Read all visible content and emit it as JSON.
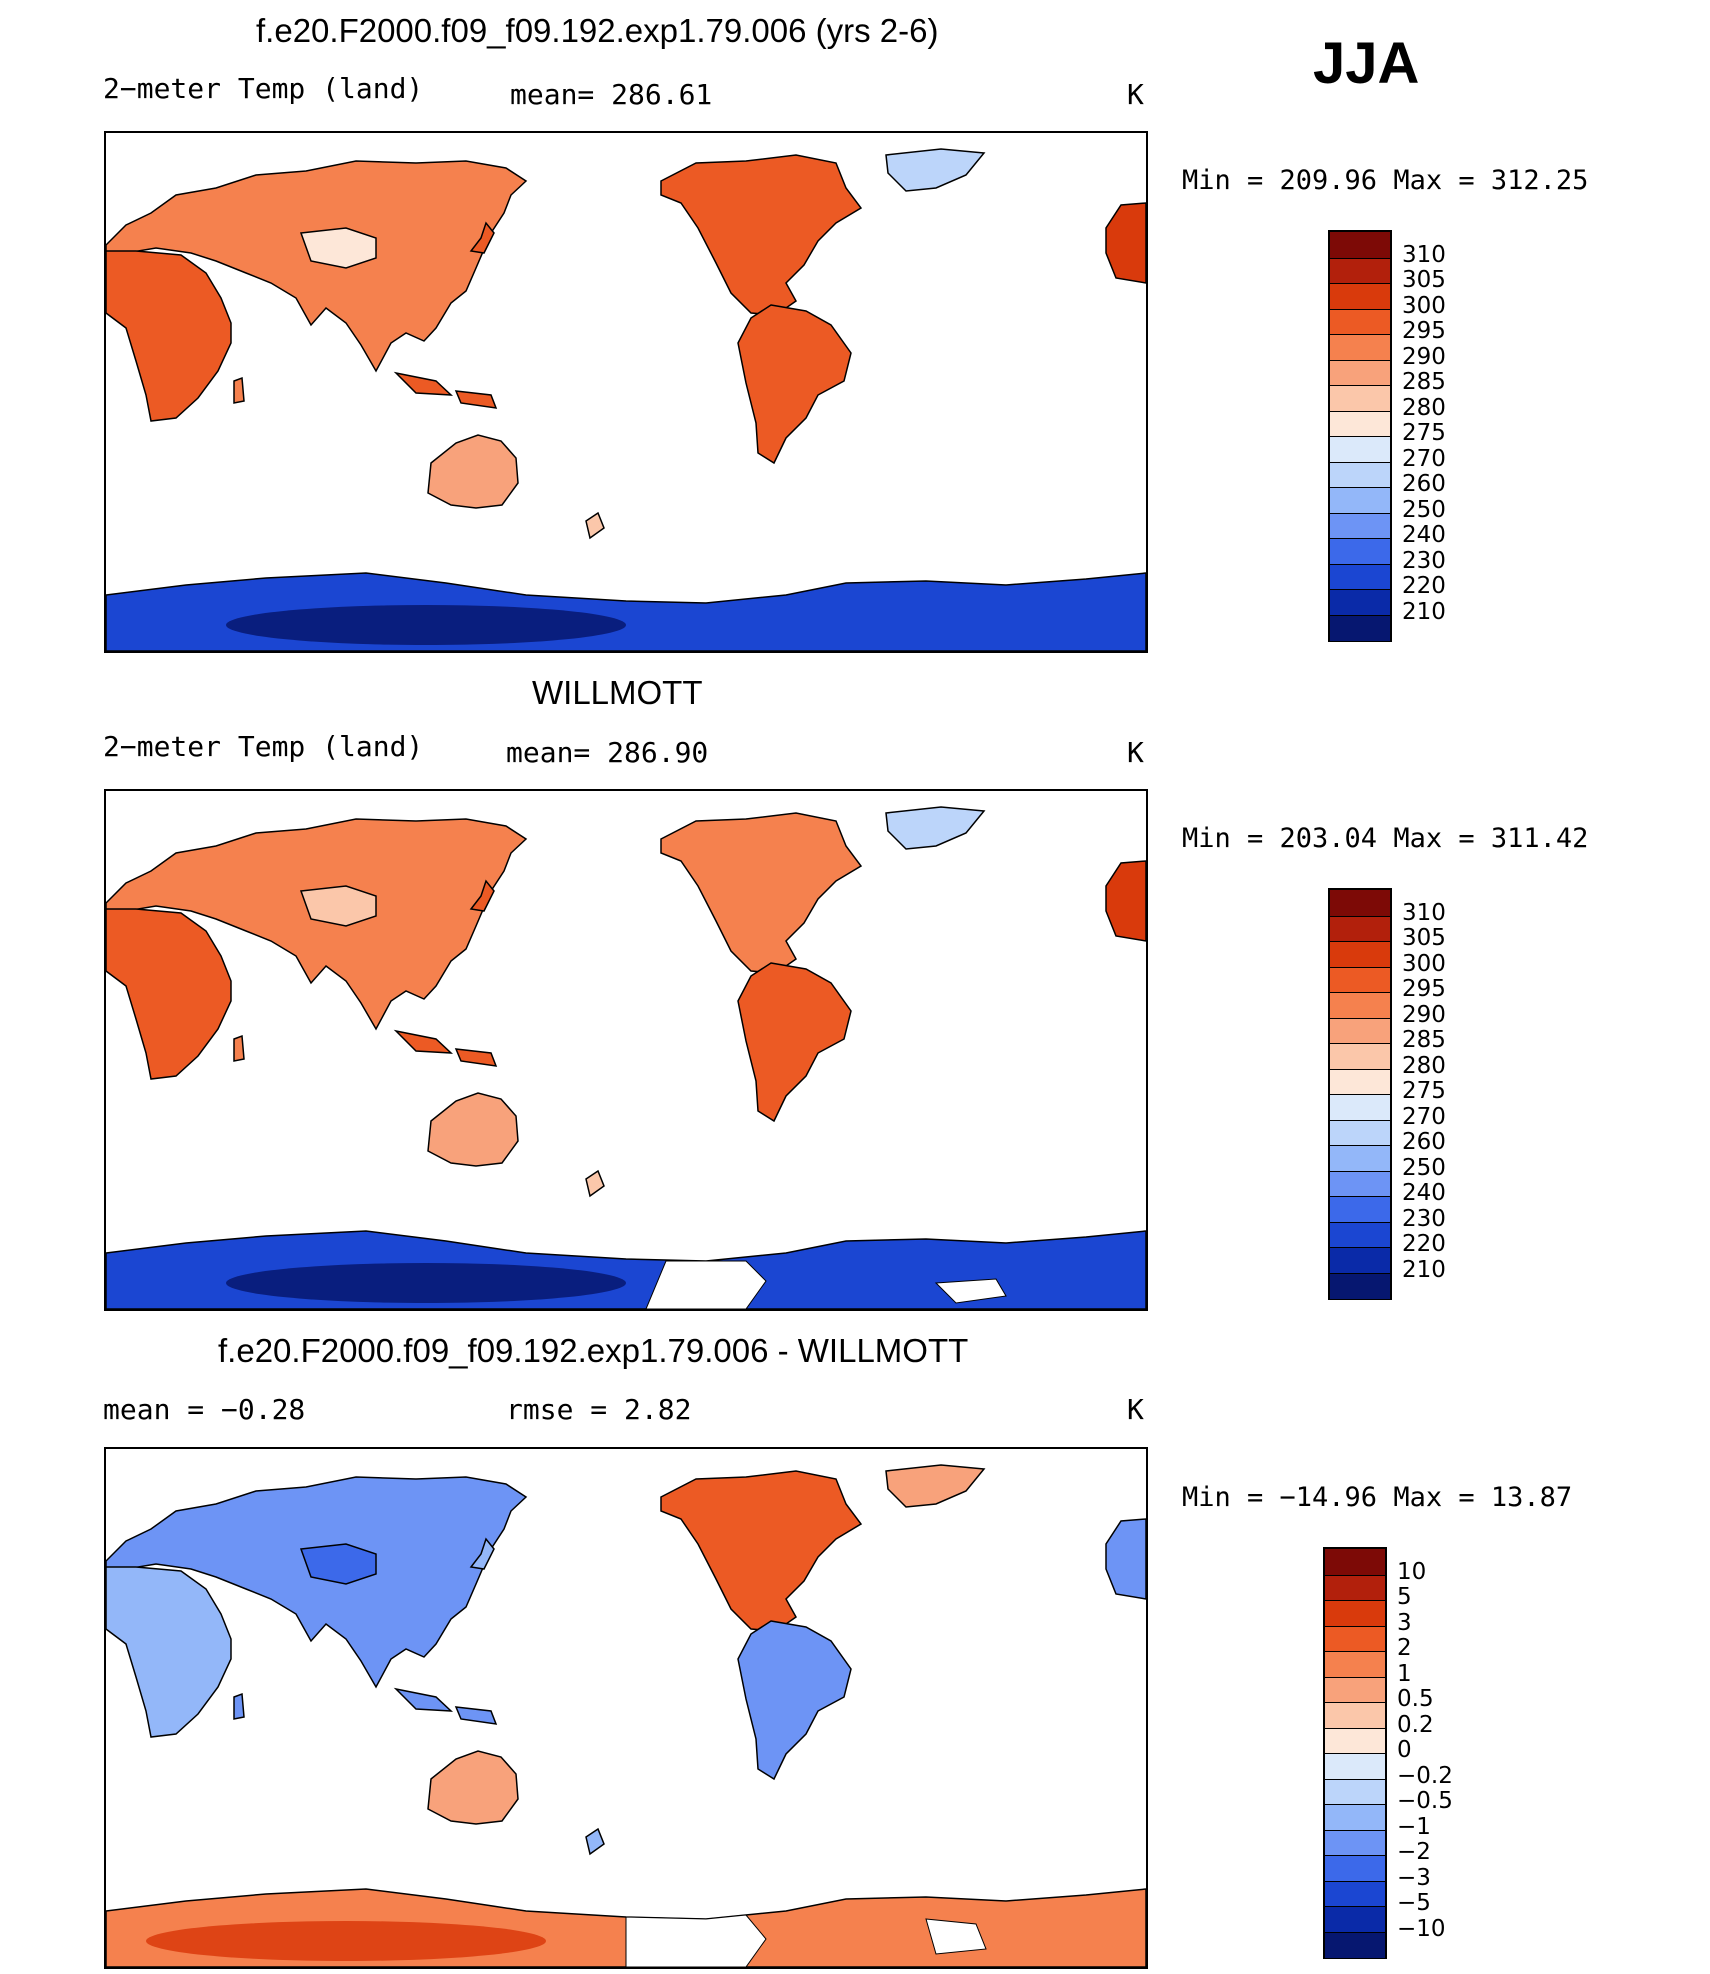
{
  "season": "JJA",
  "panels": [
    {
      "title": "f.e20.F2000.f09_f09.192.exp1.79.006 (yrs 2-6)",
      "left_label": "2−meter Temp (land)",
      "center_label": "mean= 286.61",
      "units": "K",
      "minmax": "Min = 209.96 Max = 312.25",
      "scheme": "abs",
      "antarctic_hole": false,
      "legend": {
        "ticks": [
          "310",
          "305",
          "300",
          "295",
          "290",
          "285",
          "280",
          "275",
          "270",
          "260",
          "250",
          "240",
          "230",
          "220",
          "210"
        ],
        "colors": [
          "#7d0a06",
          "#b2200c",
          "#d93a0c",
          "#ec5a24",
          "#f5814e",
          "#f8a27b",
          "#fbc7aa",
          "#fde7d8",
          "#dbe9fa",
          "#bcd5fa",
          "#93b7f9",
          "#6d94f5",
          "#3c69ea",
          "#1b46d2",
          "#0a2aa8",
          "#061770"
        ]
      }
    },
    {
      "title": "WILLMOTT",
      "left_label": "2−meter Temp (land)",
      "center_label": "mean= 286.90",
      "units": "K",
      "minmax": "Min = 203.04 Max = 311.42",
      "scheme": "abs",
      "antarctic_hole": true,
      "legend": {
        "ticks": [
          "310",
          "305",
          "300",
          "295",
          "290",
          "285",
          "280",
          "275",
          "270",
          "260",
          "250",
          "240",
          "230",
          "220",
          "210"
        ],
        "colors": [
          "#7d0a06",
          "#b2200c",
          "#d93a0c",
          "#ec5a24",
          "#f5814e",
          "#f8a27b",
          "#fbc7aa",
          "#fde7d8",
          "#dbe9fa",
          "#bcd5fa",
          "#93b7f9",
          "#6d94f5",
          "#3c69ea",
          "#1b46d2",
          "#0a2aa8",
          "#061770"
        ]
      }
    },
    {
      "title": "f.e20.F2000.f09_f09.192.exp1.79.006 - WILLMOTT",
      "left_label": "mean =   −0.28",
      "center_label": "rmse =    2.82",
      "units": "K",
      "minmax": "Min = −14.96 Max =   13.87",
      "scheme": "diff",
      "antarctic_hole": true,
      "legend": {
        "ticks": [
          "10",
          "5",
          "3",
          "2",
          "1",
          "0.5",
          "0.2",
          "0",
          "−0.2",
          "−0.5",
          "−1",
          "−2",
          "−3",
          "−5",
          "−10"
        ],
        "colors": [
          "#7d0a06",
          "#b2200c",
          "#d93a0c",
          "#ec5a24",
          "#f5814e",
          "#f8a27b",
          "#fbc7aa",
          "#fde7d8",
          "#dbe9fa",
          "#bcd5fa",
          "#93b7f9",
          "#6d94f5",
          "#3c69ea",
          "#1b46d2",
          "#0a2aa8",
          "#061770"
        ]
      }
    }
  ]
}
